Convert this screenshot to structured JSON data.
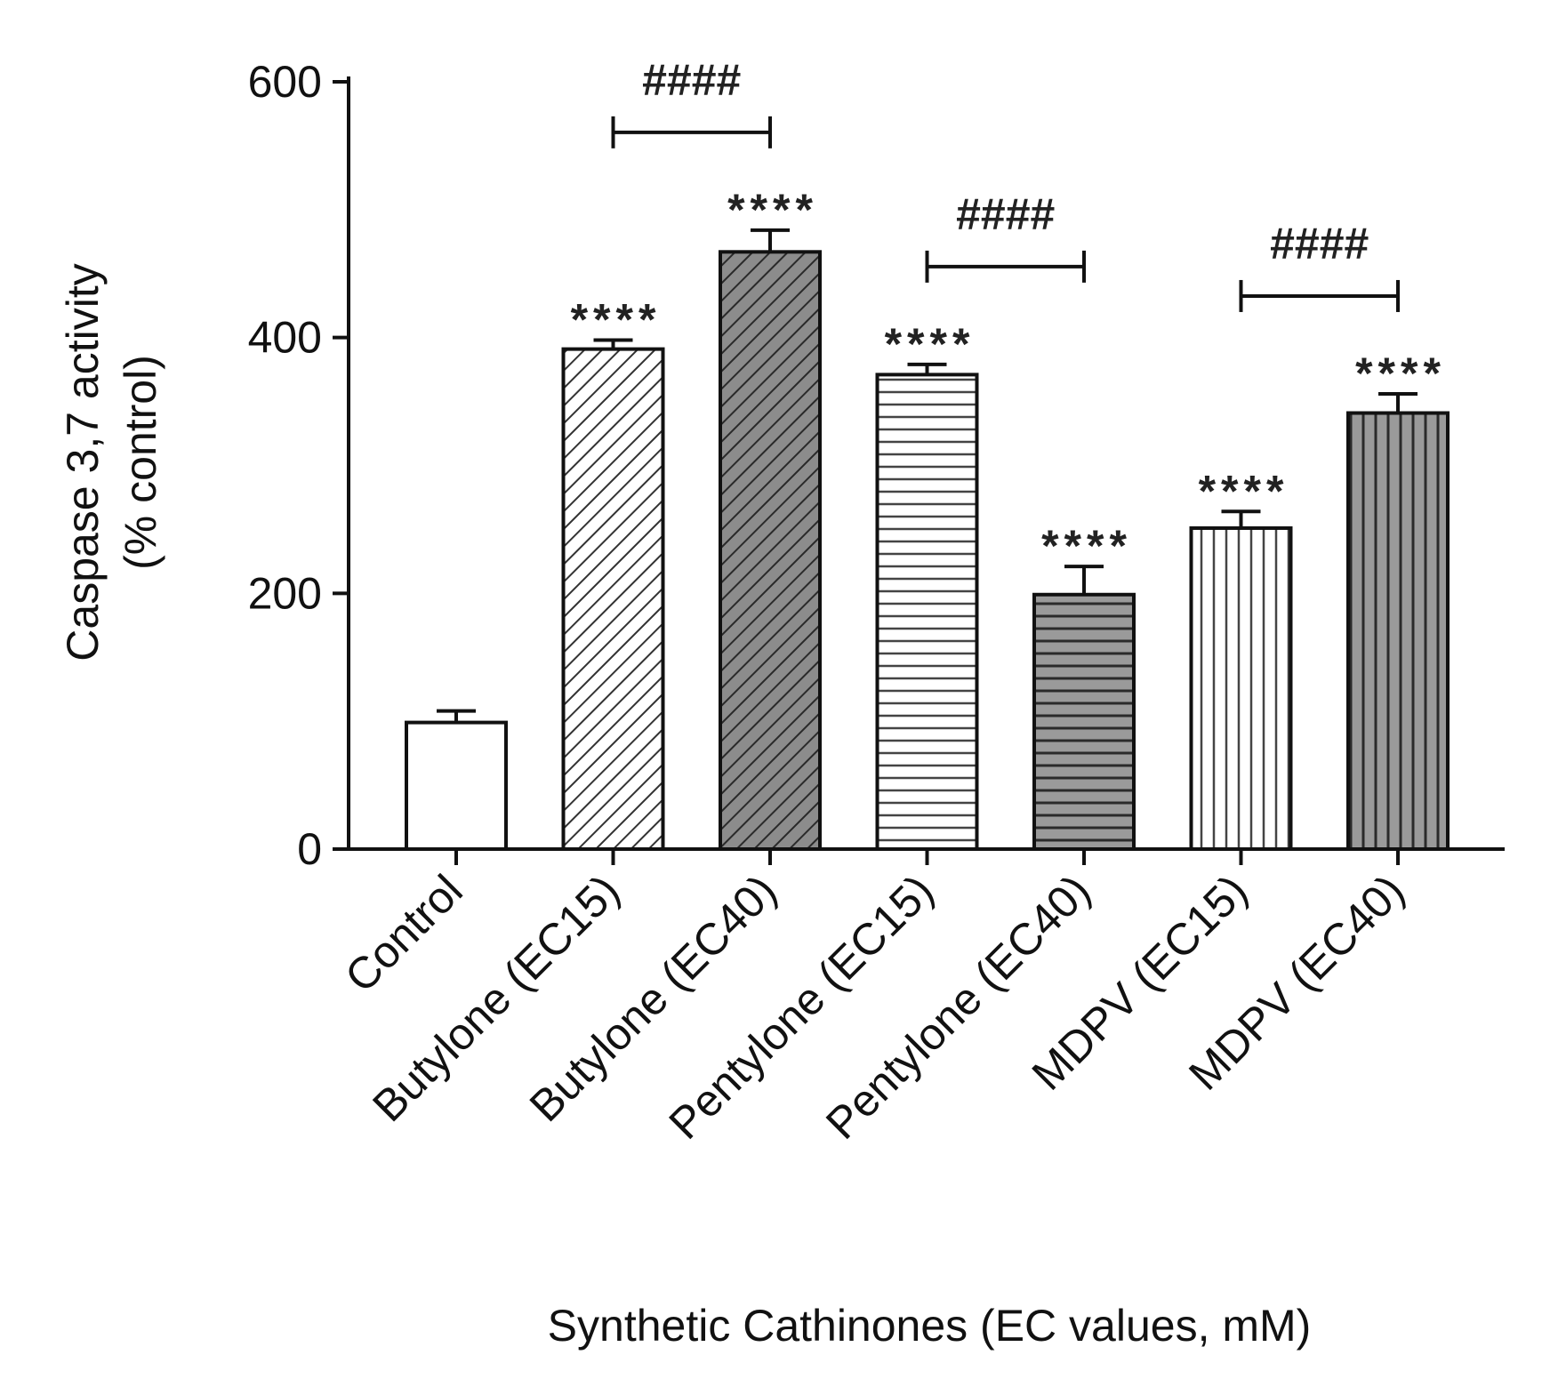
{
  "chart_data": {
    "type": "bar",
    "title": "",
    "ylabel_line1": "Caspase 3,7 activity",
    "ylabel_line2": "(% control)",
    "xlabel": "Synthetic Cathinones (EC values, mM)",
    "ylim": [
      0,
      600
    ],
    "yticks": [
      0,
      200,
      400,
      600
    ],
    "grid": false,
    "categories": [
      "Control",
      "Butylone (EC15)",
      "Butylone (EC40)",
      "Pentylone (EC15)",
      "Pentylone (EC40)",
      "MDPV (EC15)",
      "MDPV (EC40)"
    ],
    "values": [
      99,
      391,
      467,
      371,
      199,
      251,
      341
    ],
    "errors": [
      9,
      7,
      17,
      8,
      22,
      13,
      15
    ],
    "patterns": [
      "solid-white",
      "diag-light",
      "diag-dark",
      "horiz-light",
      "horiz-dark",
      "vert-light",
      "vert-dark"
    ],
    "significance": [
      "",
      "****",
      "****",
      "****",
      "****",
      "****",
      "****"
    ],
    "comparisons": [
      {
        "from": 1,
        "to": 2,
        "label": "####"
      },
      {
        "from": 3,
        "to": 4,
        "label": "####"
      },
      {
        "from": 5,
        "to": 6,
        "label": "####"
      }
    ]
  },
  "colors": {
    "axis": "#111111",
    "light_fill": "#ffffff",
    "dark_fill": "#9a9a9a"
  }
}
